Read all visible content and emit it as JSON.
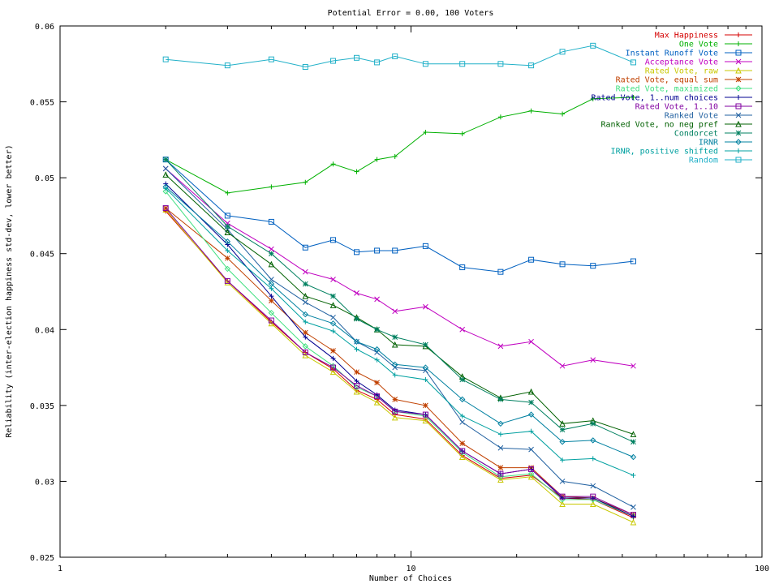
{
  "chart_data": {
    "type": "line",
    "title": "Potential Error = 0.00, 100 Voters",
    "xlabel": "Number of Choices",
    "ylabel": "Reliability (inter-election happiness std-dev, lower better)",
    "x_scale": "log",
    "xlim": [
      1,
      100
    ],
    "ylim": [
      0.025,
      0.06
    ],
    "x_ticks": [
      1,
      10,
      100
    ],
    "x_tick_labels": [
      "1",
      "10",
      "100"
    ],
    "y_ticks": [
      0.025,
      0.03,
      0.035,
      0.04,
      0.045,
      0.05,
      0.055,
      0.06
    ],
    "y_tick_labels": [
      "0.025",
      "0.03",
      "0.035",
      "0.04",
      "0.045",
      "0.05",
      "0.055",
      "0.06"
    ],
    "grid": false,
    "legend_position": "top-right",
    "x": [
      2,
      3,
      4,
      5,
      6,
      7,
      8,
      9,
      11,
      14,
      18,
      22,
      27,
      33,
      43
    ],
    "series": [
      {
        "name": "Max Happiness",
        "color": "#d40000",
        "marker": "plus",
        "values": [
          0.0478,
          0.0432,
          0.0405,
          0.0385,
          0.0374,
          0.036,
          0.0354,
          0.0344,
          0.0341,
          0.0317,
          0.0302,
          0.0304,
          0.0289,
          0.0288,
          0.0276
        ]
      },
      {
        "name": "One Vote",
        "color": "#00b000",
        "marker": "plus",
        "values": [
          0.0512,
          0.049,
          0.0494,
          0.0497,
          0.0509,
          0.0504,
          0.0512,
          0.0514,
          0.053,
          0.0529,
          0.054,
          0.0544,
          0.0542,
          0.0552,
          0.0553
        ]
      },
      {
        "name": "Instant Runoff Vote",
        "color": "#0060c0",
        "marker": "square",
        "values": [
          0.0512,
          0.0475,
          0.0471,
          0.0454,
          0.0459,
          0.0451,
          0.0452,
          0.0452,
          0.0455,
          0.0441,
          0.0438,
          0.0446,
          0.0443,
          0.0442,
          0.0445
        ]
      },
      {
        "name": "Acceptance Vote",
        "color": "#c000c0",
        "marker": "x",
        "values": [
          0.0506,
          0.047,
          0.0453,
          0.0438,
          0.0433,
          0.0424,
          0.042,
          0.0412,
          0.0415,
          0.04,
          0.0389,
          0.0392,
          0.0376,
          0.038,
          0.0376
        ]
      },
      {
        "name": "Rated Vote, raw",
        "color": "#c8c800",
        "marker": "triangle",
        "values": [
          0.0479,
          0.0431,
          0.0404,
          0.0383,
          0.0372,
          0.0359,
          0.0352,
          0.0342,
          0.034,
          0.0316,
          0.0301,
          0.0303,
          0.0285,
          0.0285,
          0.0273
        ]
      },
      {
        "name": "Rated Vote, equal sum",
        "color": "#c04000",
        "marker": "star",
        "values": [
          0.048,
          0.0447,
          0.0419,
          0.0398,
          0.0386,
          0.0372,
          0.0365,
          0.0354,
          0.035,
          0.0325,
          0.0309,
          0.0309,
          0.029,
          0.0289,
          0.0278
        ]
      },
      {
        "name": "Rated Vote, maximized",
        "color": "#40e080",
        "marker": "diamond",
        "values": [
          0.0491,
          0.044,
          0.0411,
          0.0389,
          0.0376,
          0.0362,
          0.0356,
          0.0346,
          0.0343,
          0.0319,
          0.0303,
          0.0305,
          0.0288,
          0.0288,
          0.0277
        ]
      },
      {
        "name": "Rated Vote, 1..num choices",
        "color": "#000090",
        "marker": "plus",
        "values": [
          0.0496,
          0.0456,
          0.0422,
          0.0395,
          0.0381,
          0.0366,
          0.0357,
          0.0347,
          0.0344,
          0.032,
          0.0305,
          0.0308,
          0.0289,
          0.0289,
          0.0277
        ]
      },
      {
        "name": "Rated Vote, 1..10",
        "color": "#8000a0",
        "marker": "square",
        "values": [
          0.048,
          0.0432,
          0.0406,
          0.0385,
          0.0375,
          0.0363,
          0.0356,
          0.0346,
          0.0344,
          0.032,
          0.0305,
          0.0308,
          0.029,
          0.029,
          0.0278
        ]
      },
      {
        "name": "Ranked Vote",
        "color": "#2060a0",
        "marker": "x",
        "values": [
          0.0506,
          0.0466,
          0.0433,
          0.0418,
          0.0408,
          0.0392,
          0.0385,
          0.0375,
          0.0373,
          0.0339,
          0.0322,
          0.0321,
          0.03,
          0.0297,
          0.0283
        ]
      },
      {
        "name": "Ranked Vote, no neg pref",
        "color": "#006000",
        "marker": "triangle",
        "values": [
          0.0502,
          0.0464,
          0.0443,
          0.0422,
          0.0416,
          0.0408,
          0.04,
          0.039,
          0.0389,
          0.0369,
          0.0355,
          0.0359,
          0.0338,
          0.034,
          0.0331
        ]
      },
      {
        "name": "Condorcet",
        "color": "#008060",
        "marker": "star",
        "values": [
          0.0512,
          0.0468,
          0.045,
          0.043,
          0.0422,
          0.0407,
          0.04,
          0.0395,
          0.039,
          0.0367,
          0.0354,
          0.0352,
          0.0334,
          0.0338,
          0.0326
        ]
      },
      {
        "name": "IRNR",
        "color": "#0080a0",
        "marker": "diamond",
        "values": [
          0.0494,
          0.0458,
          0.043,
          0.041,
          0.0404,
          0.0392,
          0.0387,
          0.0377,
          0.0375,
          0.0354,
          0.0338,
          0.0344,
          0.0326,
          0.0327,
          0.0316
        ]
      },
      {
        "name": "IRNR, positive shifted",
        "color": "#00a0a0",
        "marker": "plus",
        "values": [
          0.0493,
          0.0452,
          0.0427,
          0.0405,
          0.0399,
          0.0387,
          0.038,
          0.037,
          0.0367,
          0.0343,
          0.0331,
          0.0333,
          0.0314,
          0.0315,
          0.0304
        ]
      },
      {
        "name": "Random",
        "color": "#20b0c8",
        "marker": "square",
        "values": [
          0.0578,
          0.0574,
          0.0578,
          0.0573,
          0.0577,
          0.0579,
          0.0576,
          0.058,
          0.0575,
          0.0575,
          0.0575,
          0.0574,
          0.0583,
          0.0587,
          0.0576
        ]
      }
    ]
  }
}
